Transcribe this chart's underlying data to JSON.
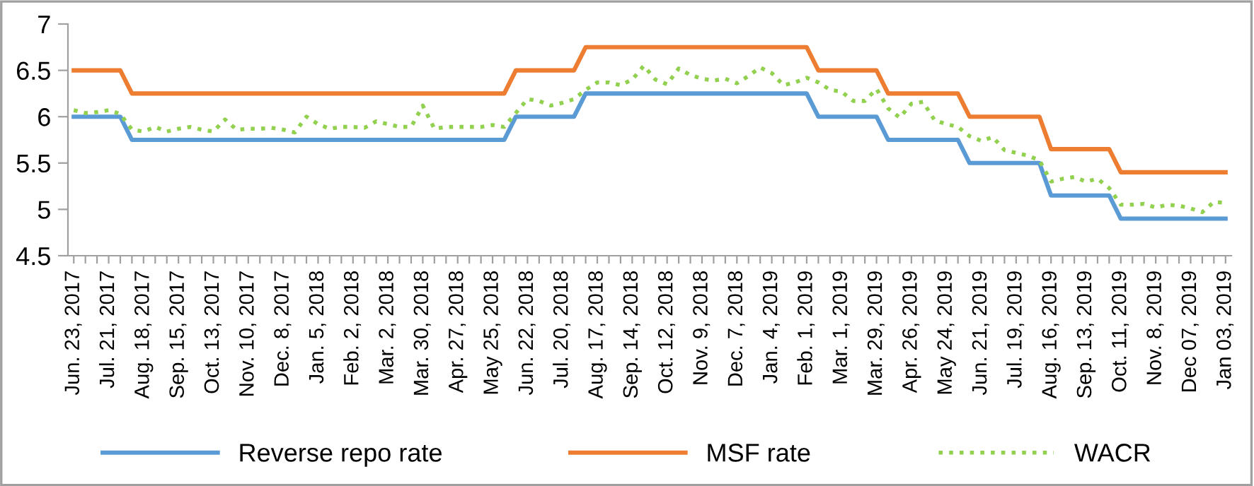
{
  "chart_data": {
    "type": "line",
    "categories": [
      "Jun. 23, 2017",
      null,
      null,
      "Jul. 21, 2017",
      null,
      null,
      "Aug. 18, 2017",
      null,
      null,
      "Sep. 15, 2017",
      null,
      null,
      "Oct. 13, 2017",
      null,
      null,
      "Nov. 10, 2017",
      null,
      null,
      "Dec. 8, 2017",
      null,
      null,
      "Jan. 5, 2018",
      null,
      null,
      "Feb. 2, 2018",
      null,
      null,
      "Mar. 2, 2018",
      null,
      null,
      "Mar. 30, 2018",
      null,
      null,
      "Apr. 27, 2018",
      null,
      null,
      "May 25, 2018",
      null,
      null,
      "Jun. 22, 2018",
      null,
      null,
      "Jul. 20, 2018",
      null,
      null,
      "Aug. 17, 2018",
      null,
      null,
      "Sep. 14, 2018",
      null,
      null,
      "Oct. 12, 2018",
      null,
      null,
      "Nov. 9, 2018",
      null,
      null,
      "Dec. 7, 2018",
      null,
      null,
      "Jan. 4, 2019",
      null,
      null,
      "Feb. 1, 2019",
      null,
      null,
      "Mar. 1, 2019",
      null,
      null,
      "Mar. 29, 2019",
      null,
      null,
      "Apr. 26, 2019",
      null,
      null,
      "May 24, 2019",
      null,
      null,
      "Jun. 21, 2019",
      null,
      null,
      "Jul. 19, 2019",
      null,
      null,
      "Aug. 16, 2019",
      null,
      null,
      "Sep. 13, 2019",
      null,
      null,
      "Oct. 11, 2019",
      null,
      null,
      "Nov. 8, 2019",
      null,
      null,
      "Dec 07, 2019",
      null,
      null,
      "Jan 03, 2019"
    ],
    "series": [
      {
        "name": "Reverse repo rate",
        "color": "#5b9bd5",
        "line_style": "solid",
        "values": [
          6.0,
          6.0,
          6.0,
          6.0,
          6.0,
          5.75,
          5.75,
          5.75,
          5.75,
          5.75,
          5.75,
          5.75,
          5.75,
          5.75,
          5.75,
          5.75,
          5.75,
          5.75,
          5.75,
          5.75,
          5.75,
          5.75,
          5.75,
          5.75,
          5.75,
          5.75,
          5.75,
          5.75,
          5.75,
          5.75,
          5.75,
          5.75,
          5.75,
          5.75,
          5.75,
          5.75,
          5.75,
          5.75,
          6.0,
          6.0,
          6.0,
          6.0,
          6.0,
          6.0,
          6.25,
          6.25,
          6.25,
          6.25,
          6.25,
          6.25,
          6.25,
          6.25,
          6.25,
          6.25,
          6.25,
          6.25,
          6.25,
          6.25,
          6.25,
          6.25,
          6.25,
          6.25,
          6.25,
          6.25,
          6.0,
          6.0,
          6.0,
          6.0,
          6.0,
          6.0,
          5.75,
          5.75,
          5.75,
          5.75,
          5.75,
          5.75,
          5.75,
          5.5,
          5.5,
          5.5,
          5.5,
          5.5,
          5.5,
          5.5,
          5.15,
          5.15,
          5.15,
          5.15,
          5.15,
          5.15,
          4.9,
          4.9,
          4.9,
          4.9,
          4.9,
          4.9,
          4.9,
          4.9,
          4.9,
          4.9
        ]
      },
      {
        "name": "MSF rate",
        "color": "#ed7d31",
        "line_style": "solid",
        "values": [
          6.5,
          6.5,
          6.5,
          6.5,
          6.5,
          6.25,
          6.25,
          6.25,
          6.25,
          6.25,
          6.25,
          6.25,
          6.25,
          6.25,
          6.25,
          6.25,
          6.25,
          6.25,
          6.25,
          6.25,
          6.25,
          6.25,
          6.25,
          6.25,
          6.25,
          6.25,
          6.25,
          6.25,
          6.25,
          6.25,
          6.25,
          6.25,
          6.25,
          6.25,
          6.25,
          6.25,
          6.25,
          6.25,
          6.5,
          6.5,
          6.5,
          6.5,
          6.5,
          6.5,
          6.75,
          6.75,
          6.75,
          6.75,
          6.75,
          6.75,
          6.75,
          6.75,
          6.75,
          6.75,
          6.75,
          6.75,
          6.75,
          6.75,
          6.75,
          6.75,
          6.75,
          6.75,
          6.75,
          6.75,
          6.5,
          6.5,
          6.5,
          6.5,
          6.5,
          6.5,
          6.25,
          6.25,
          6.25,
          6.25,
          6.25,
          6.25,
          6.25,
          6.0,
          6.0,
          6.0,
          6.0,
          6.0,
          6.0,
          6.0,
          5.65,
          5.65,
          5.65,
          5.65,
          5.65,
          5.65,
          5.4,
          5.4,
          5.4,
          5.4,
          5.4,
          5.4,
          5.4,
          5.4,
          5.4,
          5.4
        ]
      },
      {
        "name": "WACR",
        "color": "#92d050",
        "line_style": "dotted",
        "values": [
          6.07,
          6.04,
          6.05,
          6.07,
          6.03,
          5.86,
          5.84,
          5.89,
          5.84,
          5.87,
          5.89,
          5.86,
          5.84,
          5.97,
          5.86,
          5.87,
          5.87,
          5.88,
          5.86,
          5.83,
          6.0,
          5.92,
          5.87,
          5.89,
          5.89,
          5.88,
          5.95,
          5.92,
          5.89,
          5.89,
          6.12,
          5.87,
          5.89,
          5.89,
          5.89,
          5.89,
          5.91,
          5.89,
          6.04,
          6.19,
          6.17,
          6.12,
          6.15,
          6.19,
          6.29,
          6.37,
          6.37,
          6.34,
          6.4,
          6.55,
          6.4,
          6.35,
          6.52,
          6.45,
          6.41,
          6.39,
          6.41,
          6.36,
          6.44,
          6.53,
          6.47,
          6.34,
          6.37,
          6.42,
          6.37,
          6.29,
          6.27,
          6.17,
          6.17,
          6.3,
          6.09,
          5.99,
          6.14,
          6.16,
          5.96,
          5.92,
          5.89,
          5.79,
          5.74,
          5.78,
          5.64,
          5.61,
          5.58,
          5.53,
          5.3,
          5.33,
          5.35,
          5.3,
          5.33,
          5.23,
          5.05,
          5.05,
          5.06,
          5.02,
          5.05,
          5.04,
          5.01,
          4.97,
          5.08,
          5.07
        ]
      }
    ],
    "ylim": [
      4.5,
      7
    ],
    "yticks": [
      4.5,
      5,
      5.5,
      6,
      6.5,
      7
    ],
    "grid": false,
    "legend": "bottom",
    "marker": "none"
  }
}
